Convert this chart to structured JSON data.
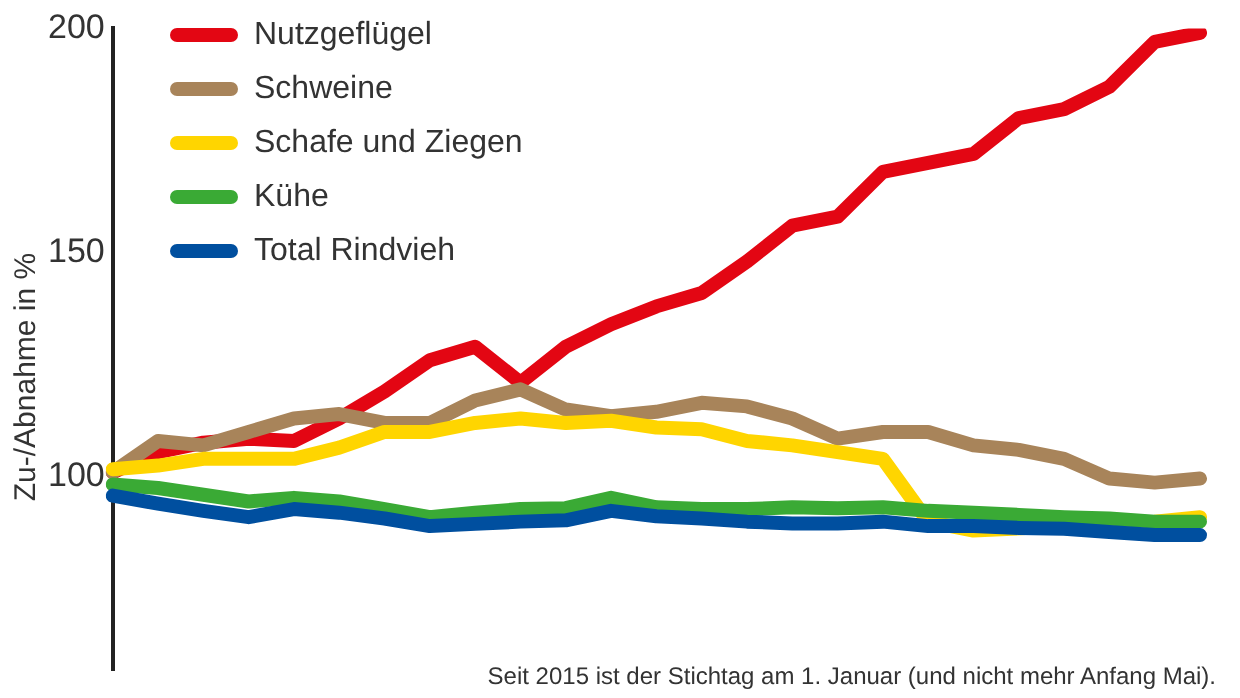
{
  "chart_data": {
    "type": "line",
    "ylabel": "Zu-/Abnahme in %",
    "annotations": [
      "Seit 2015 ist der Stichtag am 1. Januar (und nicht mehr Anfang Mai)."
    ],
    "categories": [
      null,
      null,
      null,
      null,
      null,
      null,
      null,
      null,
      null,
      null,
      null,
      null,
      null,
      null,
      null,
      null,
      null,
      null,
      null,
      null,
      null,
      null,
      null,
      null,
      null
    ],
    "series": [
      {
        "name": "Nutzgeflügel",
        "color": "#e30613",
        "values": [
          101,
          105.5,
          107.6,
          108.5,
          108,
          113,
          119,
          126,
          129,
          121,
          129,
          134,
          138,
          141,
          148,
          156,
          158,
          168,
          170,
          172,
          180,
          182,
          187,
          197,
          199
        ]
      },
      {
        "name": "Schweine",
        "color": "#a8845a",
        "values": [
          101,
          108,
          107,
          110,
          113,
          114,
          112,
          112,
          117,
          119.5,
          115,
          113.5,
          114.5,
          116.5,
          115.7,
          113,
          108.5,
          110,
          110,
          107,
          106,
          104,
          99.6,
          98.7,
          99.6
        ]
      },
      {
        "name": "Schafe und Ziegen",
        "color": "#ffd500",
        "values": [
          101.7,
          102.5,
          104,
          104,
          104,
          106.5,
          110,
          110,
          112,
          113,
          112,
          112.5,
          111,
          110.6,
          108,
          107,
          105.5,
          104,
          90,
          88,
          null,
          null,
          null,
          90,
          91
        ]
      },
      {
        "name": "Kühe",
        "color": "#3aaa35",
        "values": [
          98.3,
          97.5,
          96,
          94.5,
          95.3,
          94.5,
          92.8,
          91,
          92,
          92.8,
          93,
          95.3,
          93.2,
          92.8,
          92.8,
          93.2,
          93,
          93.2,
          92.4,
          92,
          91.5,
          91,
          90.7,
          90,
          90
        ]
      },
      {
        "name": "Total Rindvieh",
        "color": "#004f9f",
        "values": [
          95.8,
          94,
          92.4,
          91,
          92.8,
          92,
          90.7,
          89,
          89.5,
          90,
          90.3,
          92.4,
          91.2,
          90.7,
          90,
          89.6,
          89.6,
          90,
          89,
          89,
          88.6,
          88.4,
          87.7,
          87,
          87
        ]
      }
    ],
    "ylim": [
      57,
      200
    ],
    "yticks": [
      100,
      150,
      200
    ],
    "tick_labels": "y",
    "legend": "top left",
    "marker": "none",
    "line_style": "solid"
  }
}
